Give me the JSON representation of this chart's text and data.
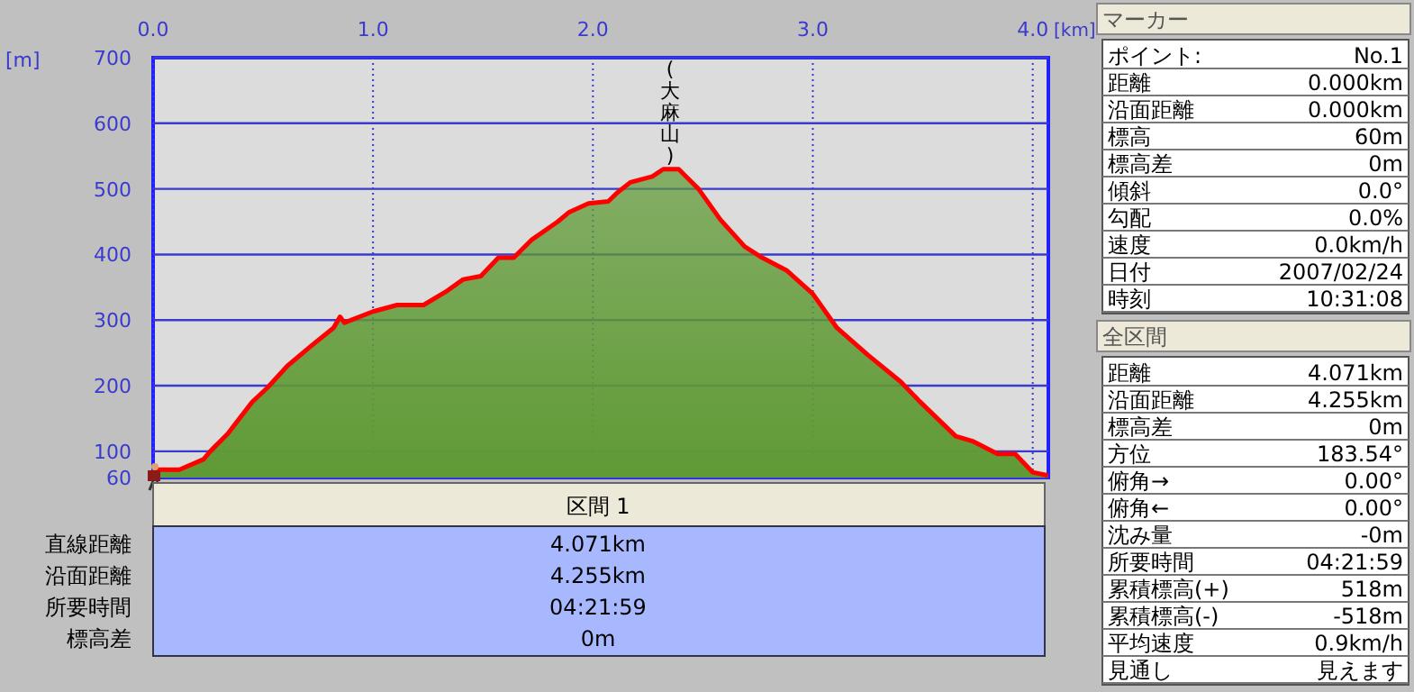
{
  "chart_data": [
    {
      "type": "area",
      "xlabel": "[km]",
      "ylabel": "[m]",
      "x": [
        0,
        0.12,
        0.23,
        0.26,
        0.34,
        0.45,
        0.52,
        0.61,
        0.72,
        0.82,
        0.85,
        0.87,
        1.0,
        1.11,
        1.23,
        1.33,
        1.41,
        1.49,
        1.57,
        1.64,
        1.72,
        1.84,
        1.89,
        1.98,
        2.07,
        2.11,
        2.17,
        2.27,
        2.32,
        2.39,
        2.48,
        2.58,
        2.69,
        2.77,
        2.88,
        3.0,
        3.11,
        3.25,
        3.4,
        3.48,
        3.65,
        3.73,
        3.84,
        3.92,
        4.0,
        4.07
      ],
      "series": [
        {
          "color": "#5f9a34",
          "values": [
            72,
            72,
            88,
            100,
            127,
            175,
            197,
            230,
            261,
            288,
            305,
            296,
            313,
            323,
            323,
            343,
            362,
            367,
            395,
            395,
            422,
            450,
            464,
            478,
            481,
            494,
            510,
            519,
            530,
            530,
            500,
            453,
            412,
            395,
            376,
            340,
            288,
            247,
            206,
            178,
            123,
            115,
            96,
            96,
            68,
            63
          ]
        }
      ],
      "xlim": [
        0,
        4.071
      ],
      "xticks": [
        {
          "value": 0,
          "label": "0.0"
        },
        {
          "value": 1,
          "label": "1.0"
        },
        {
          "value": 2,
          "label": "2.0"
        },
        {
          "value": 3,
          "label": "3.0"
        },
        {
          "value": 4,
          "label": "4.0"
        }
      ],
      "ylim": [
        60,
        700
      ],
      "yticks": [
        60,
        100,
        200,
        300,
        400,
        500,
        600,
        700
      ],
      "grid": true,
      "annotations": [
        "(大麻山)"
      ]
    },
    {
      "type": "other",
      "title": "マーカー",
      "annotations": [
        "ポイント:",
        "No.1",
        "距離",
        "0.000km",
        "沿面距離",
        "0.000km",
        "標高",
        "60m",
        "標高差",
        "0m",
        "傾斜",
        "0.0°",
        "勾配",
        "0.0%",
        "速度",
        "0.0km/h",
        "日付",
        "2007/02/24",
        "時刻",
        "10:31:08"
      ]
    },
    {
      "type": "other",
      "title": "全区間",
      "annotations": [
        "距離",
        "4.071km",
        "沿面距離",
        "4.255km",
        "標高差",
        "0m",
        "方位",
        "183.54°",
        "俯角→",
        "0.00°",
        "俯角←",
        "0.00°",
        "沈み量",
        "-0m",
        "所要時間",
        "04:21:59",
        "累積標高(+)",
        "518m",
        "累積標高(-)",
        "-518m",
        "平均速度",
        "0.9km/h",
        "見通し",
        "見えます"
      ]
    },
    {
      "type": "other",
      "title": "区間 1",
      "annotations": [
        "直線距離",
        "4.071km",
        "沿面距離",
        "4.255km",
        "所要時間",
        "04:21:59",
        "標高差",
        "0m"
      ]
    }
  ]
}
